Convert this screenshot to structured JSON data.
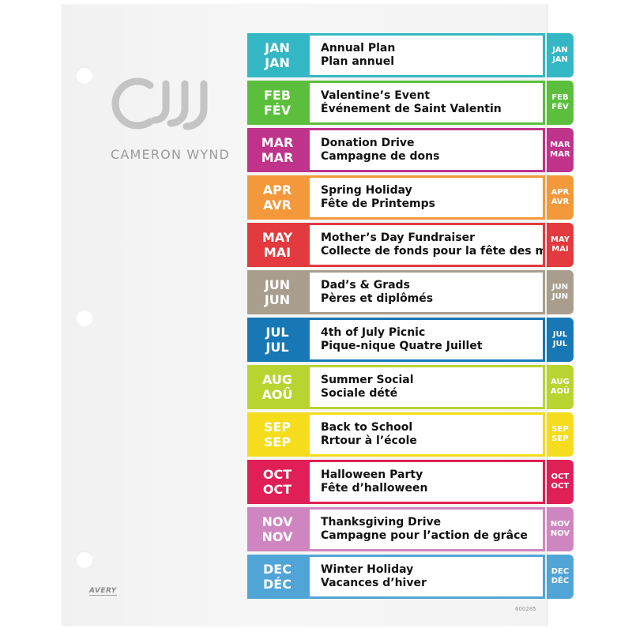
{
  "brand": {
    "name": "CAMERON WYND",
    "manufacturer": "AVERY",
    "product_code": "600285"
  },
  "tabs": [
    {
      "en": "JAN",
      "fr": "JAN",
      "title_en": "Annual Plan",
      "title_fr": "Plan annuel",
      "color": "#34b7c4"
    },
    {
      "en": "FEB",
      "fr": "FÉV",
      "title_en": "Valentine’s Event",
      "title_fr": "Événement de Saint Valentin",
      "color": "#5bbf3d"
    },
    {
      "en": "MAR",
      "fr": "MAR",
      "title_en": "Donation Drive",
      "title_fr": "Campagne de dons",
      "color": "#c0338b"
    },
    {
      "en": "APR",
      "fr": "AVR",
      "title_en": "Spring Holiday",
      "title_fr": "Fête de Printemps",
      "color": "#f3993c"
    },
    {
      "en": "MAY",
      "fr": "MAI",
      "title_en": "Mother’s Day Fundraiser",
      "title_fr": "Collecte de fonds pour la fête des mères",
      "color": "#e23a3f"
    },
    {
      "en": "JUN",
      "fr": "JUN",
      "title_en": "Dad’s & Grads",
      "title_fr": "Pères et diplômés",
      "color": "#a99e8e"
    },
    {
      "en": "JUL",
      "fr": "JUL",
      "title_en": "4th of July Picnic",
      "title_fr": "Pique-nique Quatre Juillet",
      "color": "#1778b5"
    },
    {
      "en": "AUG",
      "fr": "AOÛ",
      "title_en": "Summer Social",
      "title_fr": "Sociale dété",
      "color": "#b7d431"
    },
    {
      "en": "SEP",
      "fr": "SEP",
      "title_en": "Back to School",
      "title_fr": "Rrtour à l’école",
      "color": "#f5dc1c"
    },
    {
      "en": "OCT",
      "fr": "OCT",
      "title_en": "Halloween Party",
      "title_fr": "Fête d’halloween",
      "color": "#df1f55"
    },
    {
      "en": "NOV",
      "fr": "NOV",
      "title_en": "Thanksgiving Drive",
      "title_fr": "Campagne pour l’action de grâce",
      "color": "#cf86c0"
    },
    {
      "en": "DEC",
      "fr": "DÉC",
      "title_en": "Winter Holiday",
      "title_fr": "Vacances d’hiver",
      "color": "#51a5d6"
    }
  ]
}
